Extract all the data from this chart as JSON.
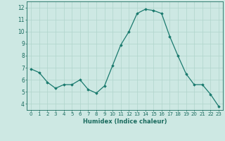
{
  "x": [
    0,
    1,
    2,
    3,
    4,
    5,
    6,
    7,
    8,
    9,
    10,
    11,
    12,
    13,
    14,
    15,
    16,
    17,
    18,
    19,
    20,
    21,
    22,
    23
  ],
  "y": [
    6.9,
    6.6,
    5.8,
    5.3,
    5.6,
    5.6,
    6.0,
    5.2,
    4.9,
    5.5,
    7.2,
    8.9,
    10.0,
    11.5,
    11.85,
    11.75,
    11.5,
    9.6,
    8.0,
    6.5,
    5.6,
    5.6,
    4.8,
    3.8
  ],
  "line_color": "#1a7a6e",
  "marker": "D",
  "marker_size": 1.8,
  "bg_color": "#cde8e3",
  "grid_color": "#b0d4cc",
  "axis_color": "#1a6b5e",
  "xlabel": "Humidex (Indice chaleur)",
  "ylim": [
    3.5,
    12.5
  ],
  "xlim": [
    -0.5,
    23.5
  ],
  "yticks": [
    4,
    5,
    6,
    7,
    8,
    9,
    10,
    11,
    12
  ],
  "xticks": [
    0,
    1,
    2,
    3,
    4,
    5,
    6,
    7,
    8,
    9,
    10,
    11,
    12,
    13,
    14,
    15,
    16,
    17,
    18,
    19,
    20,
    21,
    22,
    23
  ],
  "xlabel_fontsize": 6.0,
  "xtick_fontsize": 5.0,
  "ytick_fontsize": 5.5
}
